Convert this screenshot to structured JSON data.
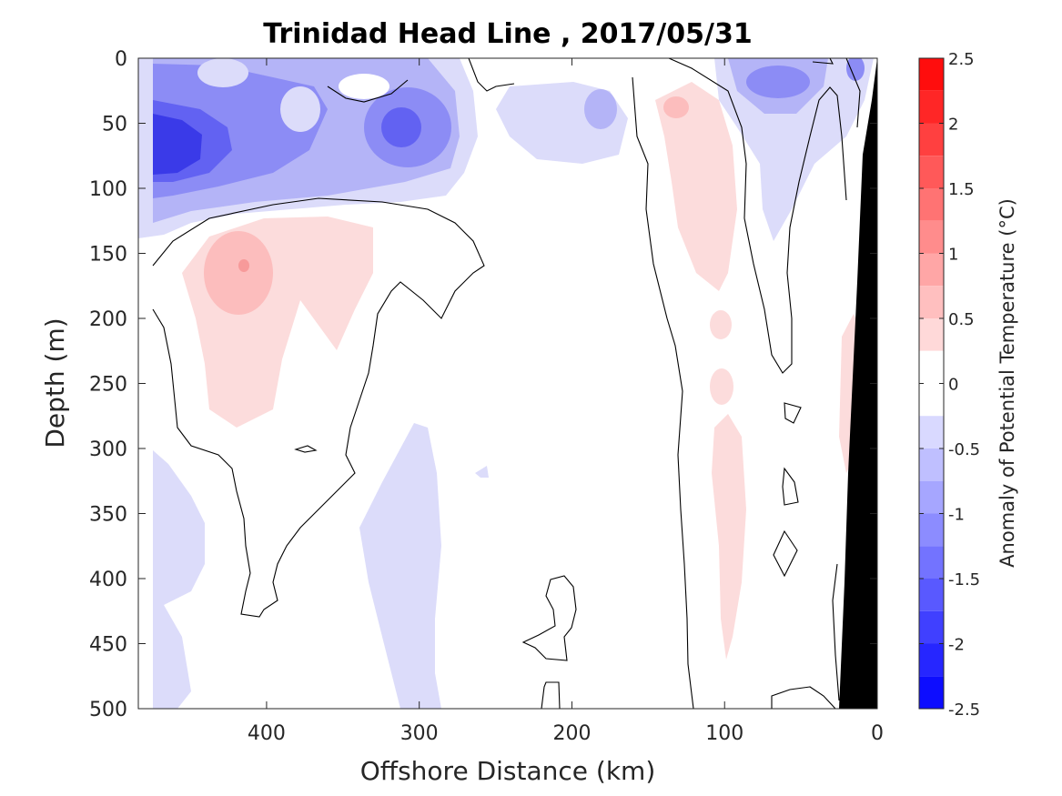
{
  "chart_data": {
    "type": "heatmap",
    "title": "Trinidad Head Line , 2017/05/31",
    "xlabel": "Offshore Distance (km)",
    "ylabel": "Depth (m)",
    "xlim": [
      484,
      0
    ],
    "x_reversed": true,
    "ylim": [
      0,
      500
    ],
    "y_reversed": true,
    "x_ticks": [
      400,
      300,
      200,
      100,
      0
    ],
    "x_tick_labels": [
      "400",
      "300",
      "200",
      "100",
      "0"
    ],
    "y_ticks": [
      0,
      50,
      100,
      150,
      200,
      250,
      300,
      350,
      400,
      450,
      500
    ],
    "y_tick_labels": [
      "0",
      "50",
      "100",
      "150",
      "200",
      "250",
      "300",
      "350",
      "400",
      "450",
      "500"
    ],
    "colorbar": {
      "label": "Anomaly of Potential Temperature (°C)",
      "min": -2.5,
      "max": 2.5,
      "step": 0.25,
      "ticks": [
        2.5,
        2,
        1.5,
        1,
        0.5,
        0,
        -0.5,
        -1,
        -1.5,
        -2,
        -2.5
      ],
      "tick_labels": [
        "2.5",
        "2",
        "1.5",
        "1",
        "0.5",
        "0",
        "-0.5",
        "-1",
        "-1.5",
        "-2",
        "-2.5"
      ],
      "colormap": "blue-white-red",
      "min_color": "#0000ff",
      "max_color": "#ff0000"
    },
    "zero_contour_color": "#000000",
    "bathymetry_color": "#000000",
    "regions": [
      {
        "name": "surface cold pool offshore",
        "x": [
          484,
          260
        ],
        "depth": [
          0,
          140
        ],
        "anomaly": -1.0,
        "min_anomaly": -2.0
      },
      {
        "name": "cold core",
        "x": [
          484,
          440
        ],
        "depth": [
          40,
          90
        ],
        "anomaly": -1.75
      },
      {
        "name": "cold eddy",
        "x": [
          330,
          300
        ],
        "depth": [
          35,
          75
        ],
        "anomaly": -1.25
      },
      {
        "name": "warm lens",
        "x": [
          470,
          350
        ],
        "depth": [
          125,
          280
        ],
        "anomaly": 0.5,
        "max_anomaly": 1.0
      },
      {
        "name": "warm filament",
        "x": [
          160,
          95
        ],
        "depth": [
          15,
          320
        ],
        "anomaly": 0.5
      },
      {
        "name": "cold nearshore surface",
        "x": [
          110,
          0
        ],
        "depth": [
          0,
          140
        ],
        "anomaly": -0.75
      }
    ]
  }
}
